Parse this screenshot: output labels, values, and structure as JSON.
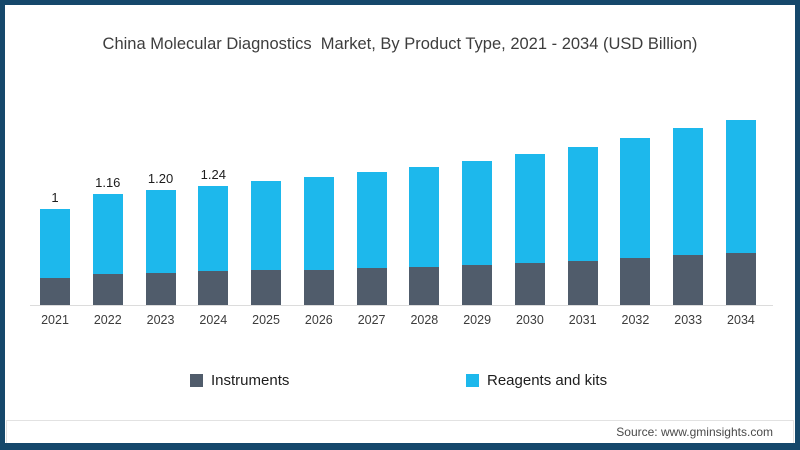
{
  "frame": {
    "border_color": "#15486b"
  },
  "title": "China Molecular Diagnostics  Market, By Product Type, 2021 - 2034 (USD Billion)",
  "source_text": "Source: www.gminsights.com",
  "legend": [
    {
      "label": "Instruments",
      "color": "#505c6b"
    },
    {
      "label": "Reagents and kits",
      "color": "#1db8ec"
    }
  ],
  "chart_data": {
    "type": "bar",
    "stacked": true,
    "title": "China Molecular Diagnostics  Market, By Product Type, 2021 - 2034 (USD Billion)",
    "unit": "USD Billion",
    "xlabel": "",
    "ylabel": "",
    "grid": false,
    "legend_position": "bottom",
    "categories": [
      "2021",
      "2022",
      "2023",
      "2024",
      "2025",
      "2026",
      "2027",
      "2028",
      "2029",
      "2030",
      "2031",
      "2032",
      "2033",
      "2034"
    ],
    "series": [
      {
        "name": "Instruments",
        "color": "#505c6b",
        "values": [
          0.28,
          0.32,
          0.33,
          0.35,
          0.36,
          0.37,
          0.39,
          0.4,
          0.42,
          0.44,
          0.46,
          0.49,
          0.52,
          0.54
        ]
      },
      {
        "name": "Reagents and kits",
        "color": "#1db8ec",
        "values": [
          0.72,
          0.84,
          0.87,
          0.89,
          0.93,
          0.96,
          1.0,
          1.04,
          1.08,
          1.13,
          1.19,
          1.25,
          1.32,
          1.39
        ]
      }
    ],
    "totals": [
      1.0,
      1.16,
      1.2,
      1.24,
      1.29,
      1.33,
      1.39,
      1.44,
      1.5,
      1.57,
      1.65,
      1.74,
      1.84,
      1.93
    ],
    "data_labels": [
      "1",
      "1.16",
      "1.20",
      "1.24",
      "",
      "",
      "",
      "",
      "",
      "",
      "",
      "",
      "",
      ""
    ]
  }
}
